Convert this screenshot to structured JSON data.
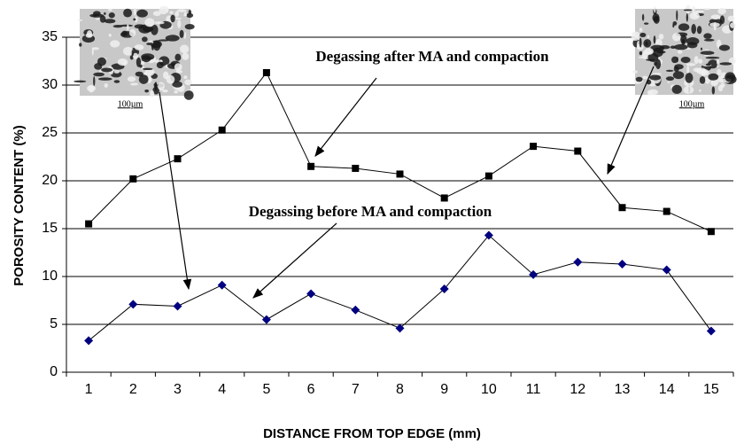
{
  "chart_data": {
    "type": "line",
    "x_label": "DISTANCE FROM TOP EDGE (mm)",
    "y_label": "POROSITY CONTENT (%)",
    "categories": [
      1,
      2,
      3,
      4,
      5,
      6,
      7,
      8,
      9,
      10,
      11,
      12,
      13,
      14,
      15
    ],
    "series": [
      {
        "name": "Degassing after MA and compaction",
        "color": "#000000",
        "marker": "square",
        "values": [
          15.5,
          20.2,
          22.3,
          25.3,
          31.3,
          21.5,
          21.3,
          20.7,
          18.2,
          20.5,
          23.6,
          23.1,
          17.2,
          16.8,
          14.7
        ]
      },
      {
        "name": "Degassing before MA and compaction",
        "color": "#000080",
        "marker": "diamond",
        "values": [
          3.3,
          7.1,
          6.9,
          9.1,
          5.5,
          8.2,
          6.5,
          4.6,
          8.7,
          14.3,
          10.2,
          11.5,
          11.3,
          10.7,
          4.3
        ]
      }
    ],
    "ylim": [
      0,
      35
    ],
    "yticks": [
      0,
      5,
      10,
      15,
      20,
      25,
      30,
      35
    ],
    "grid": true,
    "scale_bars": [
      "100µm",
      "100µm"
    ]
  }
}
